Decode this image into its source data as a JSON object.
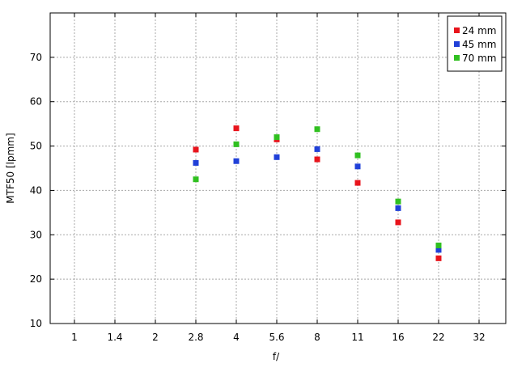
{
  "chart_data": {
    "type": "scatter",
    "xlabel": "f/",
    "ylabel": "MTF50 [lpmm]",
    "x_scale": "log2-aperture",
    "x_ticks": [
      "1",
      "1.4",
      "2",
      "2.8",
      "4",
      "5.6",
      "8",
      "11",
      "16",
      "22",
      "32"
    ],
    "ylim": [
      10,
      80
    ],
    "y_ticks": [
      10,
      20,
      30,
      40,
      50,
      60,
      70
    ],
    "grid": true,
    "legend_position": "top-right",
    "series": [
      {
        "name": "24 mm",
        "color": "#e8141c",
        "points": [
          {
            "x": "2.8",
            "y": 49.2
          },
          {
            "x": "4",
            "y": 54.0
          },
          {
            "x": "5.6",
            "y": 51.5
          },
          {
            "x": "8",
            "y": 47.0
          },
          {
            "x": "11",
            "y": 41.7
          },
          {
            "x": "16",
            "y": 32.8
          },
          {
            "x": "22",
            "y": 24.7
          }
        ]
      },
      {
        "name": "45 mm",
        "color": "#2040d8",
        "points": [
          {
            "x": "2.8",
            "y": 46.2
          },
          {
            "x": "4",
            "y": 46.6
          },
          {
            "x": "5.6",
            "y": 47.5
          },
          {
            "x": "8",
            "y": 49.3
          },
          {
            "x": "11",
            "y": 45.4
          },
          {
            "x": "16",
            "y": 36.0
          },
          {
            "x": "22",
            "y": 26.6
          }
        ]
      },
      {
        "name": "70 mm",
        "color": "#30c020",
        "points": [
          {
            "x": "2.8",
            "y": 42.5
          },
          {
            "x": "4",
            "y": 50.4
          },
          {
            "x": "5.6",
            "y": 52.0
          },
          {
            "x": "8",
            "y": 53.8
          },
          {
            "x": "11",
            "y": 47.9
          },
          {
            "x": "16",
            "y": 37.5
          },
          {
            "x": "22",
            "y": 27.6
          }
        ]
      }
    ]
  }
}
